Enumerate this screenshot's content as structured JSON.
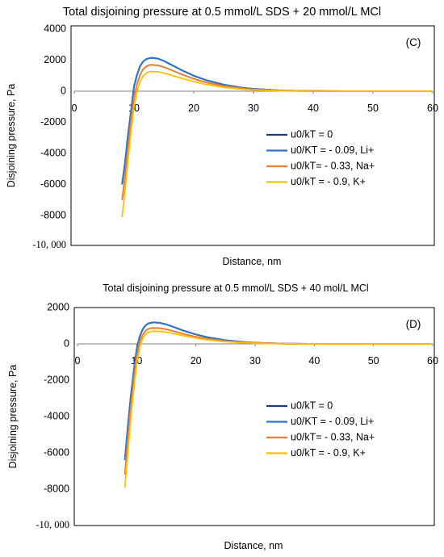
{
  "chart_data": [
    {
      "type": "line",
      "title": "Total disjoining pressure at 0.5 mmol/L SDS + 20 mmol/L MCl",
      "panel_label": "(C)",
      "xlabel": "Distance, nm",
      "ylabel": "Disjoining pressure, Pa",
      "xlim": [
        0,
        60
      ],
      "ylim": [
        -10000,
        4000
      ],
      "x_ticks": [
        "0",
        "10",
        "20",
        "30",
        "40",
        "50",
        "60"
      ],
      "y_ticks": [
        "4000",
        "2000",
        "0",
        "-2000",
        "-4000",
        "-6000",
        "-8000"
      ],
      "y_bottom_label": "-10, 000",
      "grid": false,
      "legend_position": "center-right",
      "series": [
        {
          "name": "u0/kT = 0",
          "color": "#1F3A7A",
          "x": [
            8,
            8.5,
            9,
            9.5,
            10,
            10.5,
            11,
            11.5,
            12,
            12.5,
            13,
            14,
            15,
            16,
            18,
            20,
            22,
            25,
            28,
            30,
            35,
            40,
            45,
            50,
            55,
            60
          ],
          "y": [
            -6000,
            -4600,
            -2800,
            -1300,
            300,
            1050,
            1600,
            1900,
            2050,
            2120,
            2150,
            2100,
            1950,
            1750,
            1350,
            1000,
            720,
            420,
            230,
            150,
            40,
            10,
            0,
            0,
            0,
            0
          ]
        },
        {
          "name": "u0/KT = - 0.09, Li+",
          "color": "#2E75C8",
          "x": [
            8,
            8.5,
            9,
            9.5,
            10,
            10.5,
            11,
            11.5,
            12,
            12.5,
            13,
            14,
            15,
            16,
            18,
            20,
            22,
            25,
            28,
            30,
            35,
            40,
            45,
            50,
            55,
            60
          ],
          "y": [
            -6000,
            -4600,
            -2800,
            -1300,
            300,
            1050,
            1600,
            1900,
            2050,
            2120,
            2150,
            2100,
            1950,
            1750,
            1350,
            1000,
            720,
            420,
            230,
            150,
            40,
            10,
            0,
            0,
            0,
            0
          ]
        },
        {
          "name": "u0/kT= - 0.33, Na+",
          "color": "#ED7D31",
          "x": [
            8,
            8.5,
            9,
            9.5,
            10,
            10.5,
            11,
            11.5,
            12,
            12.5,
            13,
            14,
            15,
            16,
            18,
            20,
            22,
            25,
            28,
            30,
            35,
            40,
            45,
            50,
            55,
            60
          ],
          "y": [
            -7000,
            -5500,
            -3600,
            -1900,
            -400,
            450,
            1050,
            1400,
            1580,
            1680,
            1700,
            1660,
            1550,
            1400,
            1080,
            800,
            570,
            330,
            180,
            110,
            30,
            5,
            0,
            0,
            0,
            0
          ]
        },
        {
          "name": "u0/kT = - 0.9, K+",
          "color": "#FFC000",
          "x": [
            8,
            8.5,
            9,
            9.5,
            10,
            10.5,
            11,
            11.5,
            12,
            12.5,
            13,
            14,
            15,
            16,
            18,
            20,
            22,
            25,
            28,
            30,
            35,
            40,
            45,
            50,
            55,
            60
          ],
          "y": [
            -8100,
            -6400,
            -4400,
            -2600,
            -1000,
            0,
            600,
            950,
            1150,
            1240,
            1270,
            1250,
            1170,
            1060,
            830,
            620,
            440,
            250,
            130,
            80,
            20,
            0,
            0,
            0,
            0,
            0
          ]
        }
      ]
    },
    {
      "type": "line",
      "title": "Total disjoining pressure at 0.5 mmol/L SDS + 40 mol/L MCl",
      "panel_label": "(D)",
      "xlabel": "Distance, nm",
      "ylabel": "Disjoining pressure, Pa",
      "xlim": [
        0,
        60
      ],
      "ylim": [
        -10000,
        2000
      ],
      "x_ticks": [
        "0",
        "10",
        "20",
        "30",
        "40",
        "50",
        "60"
      ],
      "y_ticks": [
        "2000",
        "0",
        "-2000",
        "-4000",
        "-6000",
        "-8000"
      ],
      "y_bottom_label": "-10, 000",
      "grid": false,
      "legend_position": "center-right",
      "series": [
        {
          "name": "u0/kT = 0",
          "color": "#1F3A7A",
          "x": [
            8,
            8.5,
            9,
            9.5,
            10,
            10.5,
            11,
            11.5,
            12,
            12.5,
            13,
            14,
            15,
            16,
            18,
            20,
            22,
            25,
            28,
            30,
            35,
            40,
            45,
            50,
            55,
            60
          ],
          "y": [
            -6400,
            -4600,
            -2900,
            -1500,
            -300,
            400,
            800,
            1020,
            1130,
            1170,
            1180,
            1150,
            1070,
            960,
            720,
            520,
            360,
            200,
            100,
            60,
            10,
            0,
            0,
            0,
            0,
            0
          ]
        },
        {
          "name": "u0/KT = - 0.09, Li+",
          "color": "#2E75C8",
          "x": [
            8,
            8.5,
            9,
            9.5,
            10,
            10.5,
            11,
            11.5,
            12,
            12.5,
            13,
            14,
            15,
            16,
            18,
            20,
            22,
            25,
            28,
            30,
            35,
            40,
            45,
            50,
            55,
            60
          ],
          "y": [
            -6400,
            -4600,
            -2900,
            -1500,
            -300,
            400,
            800,
            1020,
            1130,
            1170,
            1180,
            1150,
            1070,
            960,
            720,
            520,
            360,
            200,
            100,
            60,
            10,
            0,
            0,
            0,
            0,
            0
          ]
        },
        {
          "name": "u0/kT= - 0.33, Na+",
          "color": "#ED7D31",
          "x": [
            8,
            8.5,
            9,
            9.5,
            10,
            10.5,
            11,
            11.5,
            12,
            12.5,
            13,
            14,
            15,
            16,
            18,
            20,
            22,
            25,
            28,
            30,
            35,
            40,
            45,
            50,
            55,
            60
          ],
          "y": [
            -7200,
            -5300,
            -3500,
            -2000,
            -700,
            100,
            500,
            720,
            830,
            870,
            880,
            860,
            800,
            720,
            540,
            390,
            270,
            150,
            75,
            45,
            8,
            0,
            0,
            0,
            0,
            0
          ]
        },
        {
          "name": "u0/kT = - 0.9, K+",
          "color": "#FFC000",
          "x": [
            8,
            8.5,
            9,
            9.5,
            10,
            10.5,
            11,
            11.5,
            12,
            12.5,
            13,
            14,
            15,
            16,
            18,
            20,
            22,
            25,
            28,
            30,
            35,
            40,
            45,
            50,
            55,
            60
          ],
          "y": [
            -7900,
            -6000,
            -4100,
            -2500,
            -1100,
            -200,
            300,
            530,
            640,
            690,
            700,
            690,
            640,
            580,
            440,
            320,
            220,
            120,
            60,
            35,
            5,
            0,
            0,
            0,
            0,
            0
          ]
        }
      ]
    }
  ]
}
